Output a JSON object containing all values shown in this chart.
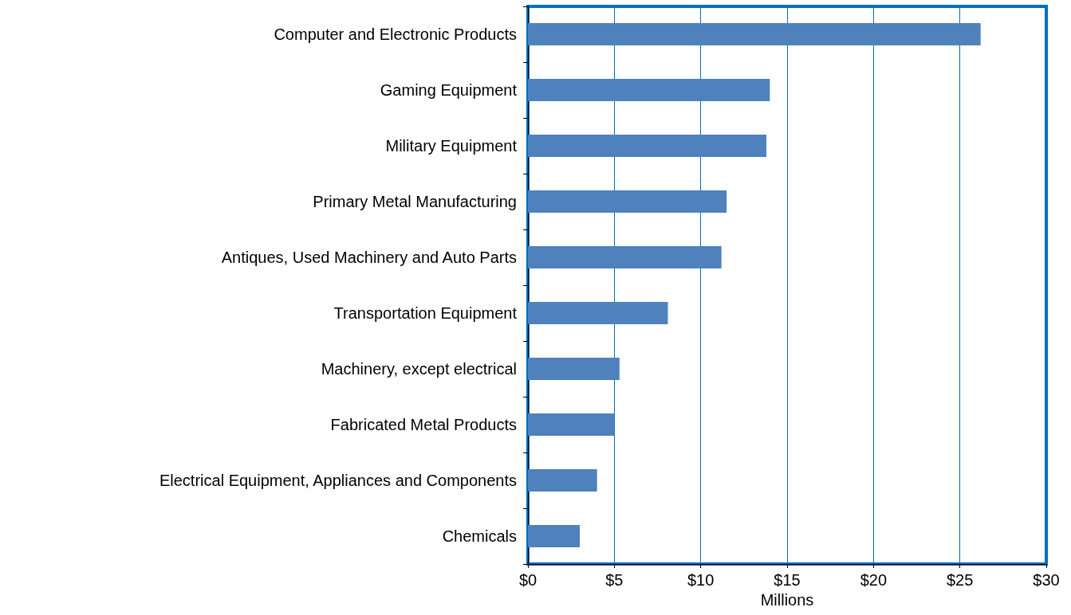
{
  "chart_data": {
    "type": "bar",
    "orientation": "horizontal",
    "xlabel": "Millions",
    "categories": [
      "Computer and Electronic Products",
      "Gaming Equipment",
      "Military Equipment",
      "Primary Metal Manufacturing",
      "Antiques, Used Machinery and Auto Parts",
      "Transportation Equipment",
      "Machinery, except electrical",
      "Fabricated Metal Products",
      "Electrical Equipment, Appliances and Components",
      "Chemicals"
    ],
    "values": [
      26.2,
      14.0,
      13.8,
      11.5,
      11.2,
      8.1,
      5.3,
      5.0,
      4.0,
      3.0
    ],
    "color": "#4f81bd",
    "xlim": [
      0,
      30
    ],
    "xticks": [
      {
        "value": 0,
        "label": "$0"
      },
      {
        "value": 5,
        "label": "$5"
      },
      {
        "value": 10,
        "label": "$10"
      },
      {
        "value": 15,
        "label": "$15"
      },
      {
        "value": 20,
        "label": "$20"
      },
      {
        "value": 25,
        "label": "$25"
      },
      {
        "value": 30,
        "label": "$30"
      }
    ],
    "grid": "x"
  }
}
